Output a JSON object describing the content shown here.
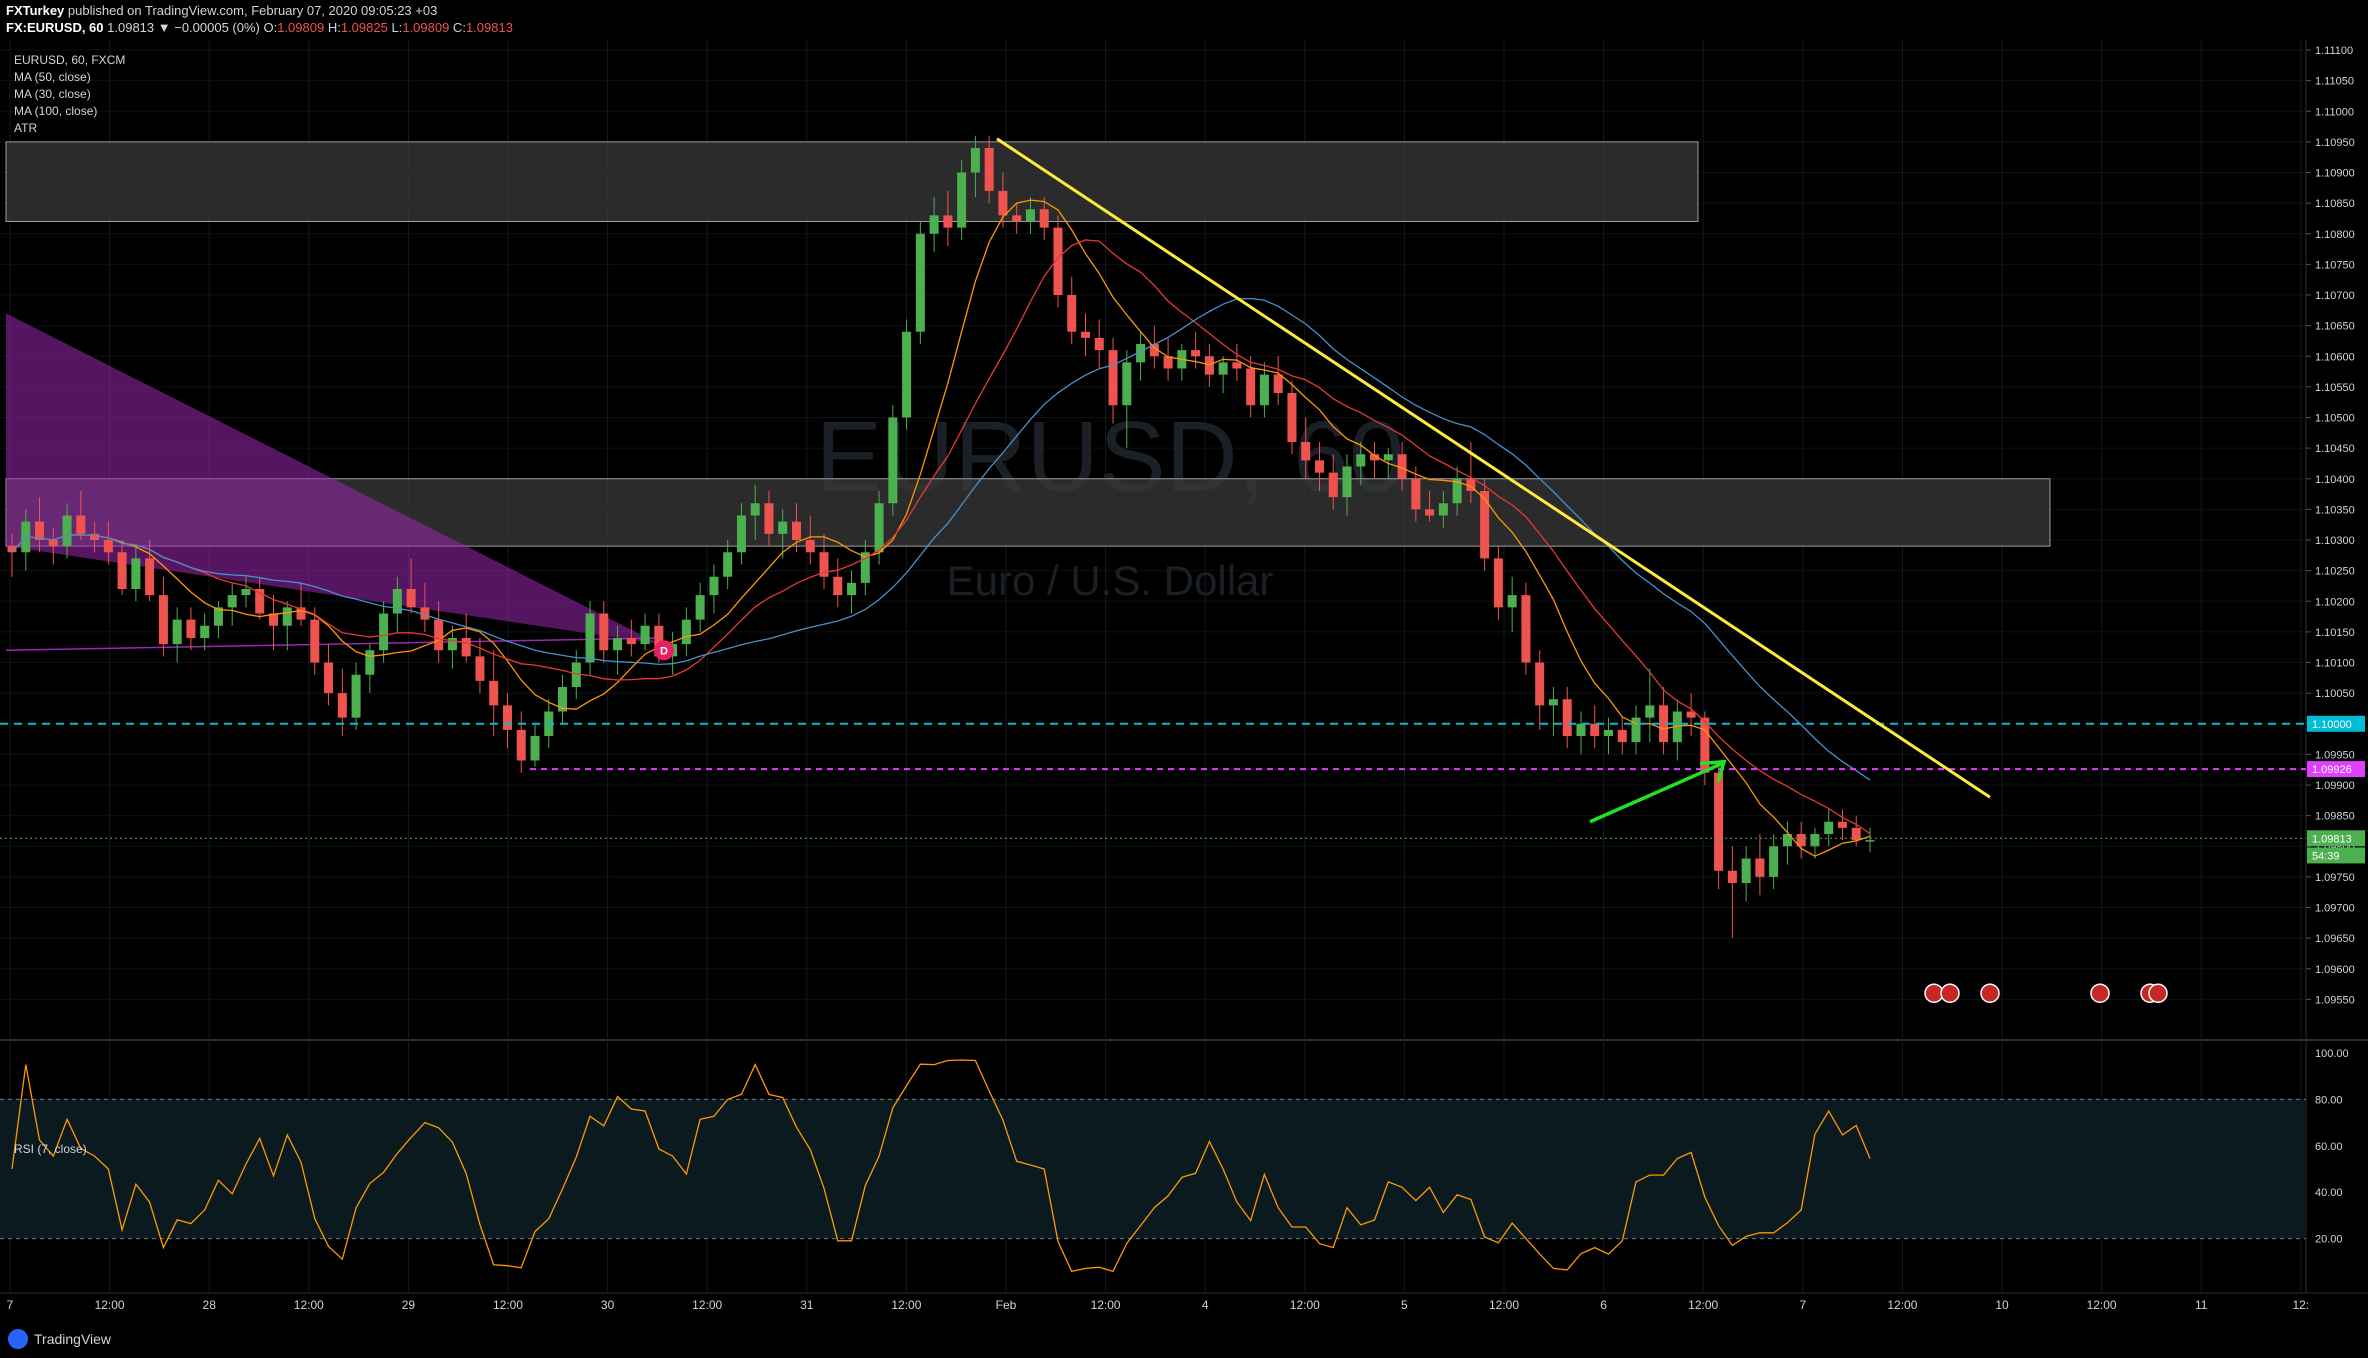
{
  "header": {
    "publisher": "FXTurkey",
    "published_on": " published on TradingView.com, February 07, 2020 09:05:23 +03",
    "symbol_line": "FX:EURUSD, 60",
    "change": " 1.09813 ▼ −0.00005 (0%) ",
    "o_label": "O:",
    "o_val": "1.09809",
    "h_label": " H:",
    "h_val": "1.09825",
    "l_label": " L:",
    "l_val": "1.09809",
    "c_label": " C:",
    "c_val": "1.09813"
  },
  "legend": {
    "symbol": "EURUSD, 60, FXCM",
    "ma50": "MA (50, close)",
    "ma30": "MA (30, close)",
    "ma100": "MA (100, close)",
    "atr": "ATR"
  },
  "watermark": {
    "title": "EURUSD, 60",
    "subtitle": "Euro / U.S. Dollar"
  },
  "rsi": {
    "label": "RSI (7, close)",
    "ticks": [
      "100.00",
      "80.00",
      "60.00",
      "40.00",
      "20.00"
    ]
  },
  "footer": {
    "brand": "TradingView"
  },
  "colors": {
    "up": "#26a69a",
    "up_bright": "#4caf50",
    "down": "#ef5350",
    "trendline": "#ffeb3b",
    "level_cyan": "#00bcd4",
    "level_magenta": "#e040fb",
    "ma_orange": "#ff9800",
    "ma_red": "#e53935",
    "ma_blue": "#4a90c8",
    "rsi_line": "#ff9800",
    "zone_fill": "#3a3a3a",
    "wedge_fill": "#9c27b0"
  },
  "chart_data": {
    "type": "candlestick",
    "title": "EURUSD, 60",
    "price_axis": {
      "ylim": [
        1.095,
        1.111
      ],
      "ticks": [
        "1.11100",
        "1.11050",
        "1.11000",
        "1.10950",
        "1.10900",
        "1.10850",
        "1.10800",
        "1.10750",
        "1.10700",
        "1.10650",
        "1.10600",
        "1.10550",
        "1.10500",
        "1.10450",
        "1.10400",
        "1.10350",
        "1.10300",
        "1.10250",
        "1.10200",
        "1.10150",
        "1.10100",
        "1.10050",
        "1.10000",
        "1.09950",
        "1.09900",
        "1.09850",
        "1.09800",
        "1.09750",
        "1.09700",
        "1.09650",
        "1.09600",
        "1.09550"
      ]
    },
    "time_axis": {
      "labels": [
        "7",
        "12:00",
        "28",
        "12:00",
        "29",
        "12:00",
        "30",
        "12:00",
        "31",
        "12:00",
        "Feb",
        "12:00",
        "4",
        "12:00",
        "5",
        "12:00",
        "6",
        "12:00",
        "7",
        "12:00",
        "10",
        "12:00",
        "11",
        "12:"
      ]
    },
    "price_labels": [
      {
        "value": 1.1,
        "text": "1.10000",
        "color": "#00bcd4"
      },
      {
        "value": 1.09926,
        "text": "1.09926",
        "color": "#e040fb"
      },
      {
        "value": 1.09813,
        "text": "1.09813",
        "color": "#4caf50"
      },
      {
        "value": 1.09785,
        "text": "54:39",
        "color": "#4caf50"
      }
    ],
    "levels": [
      {
        "name": "support 1.10000",
        "value": 1.1,
        "style": "dashed"
      },
      {
        "name": "support 1.09926",
        "value": 1.09926,
        "style": "dashed"
      }
    ],
    "zones": [
      {
        "low": 1.1082,
        "high": 1.1095
      },
      {
        "low": 1.1029,
        "high": 1.104
      }
    ],
    "candles_ohlc": [
      [
        1.1029,
        1.1031,
        1.1024,
        1.1028
      ],
      [
        1.1028,
        1.1035,
        1.1025,
        1.1033
      ],
      [
        1.1033,
        1.1037,
        1.1028,
        1.103
      ],
      [
        1.103,
        1.1032,
        1.1026,
        1.1029
      ],
      [
        1.1029,
        1.1036,
        1.1027,
        1.1034
      ],
      [
        1.1034,
        1.1038,
        1.103,
        1.1031
      ],
      [
        1.1031,
        1.1033,
        1.1028,
        1.103
      ],
      [
        1.103,
        1.1033,
        1.1026,
        1.1028
      ],
      [
        1.1028,
        1.103,
        1.1021,
        1.1022
      ],
      [
        1.1022,
        1.1029,
        1.102,
        1.1027
      ],
      [
        1.1027,
        1.103,
        1.102,
        1.1021
      ],
      [
        1.1021,
        1.1024,
        1.1011,
        1.1013
      ],
      [
        1.1013,
        1.1019,
        1.101,
        1.1017
      ],
      [
        1.1017,
        1.1019,
        1.1012,
        1.1014
      ],
      [
        1.1014,
        1.1018,
        1.1012,
        1.1016
      ],
      [
        1.1016,
        1.102,
        1.1014,
        1.1019
      ],
      [
        1.1019,
        1.1023,
        1.1016,
        1.1021
      ],
      [
        1.1021,
        1.1024,
        1.1019,
        1.1022
      ],
      [
        1.1022,
        1.1024,
        1.1017,
        1.1018
      ],
      [
        1.1018,
        1.1021,
        1.1012,
        1.1016
      ],
      [
        1.1016,
        1.102,
        1.1012,
        1.1019
      ],
      [
        1.1019,
        1.1023,
        1.1016,
        1.1017
      ],
      [
        1.1017,
        1.1019,
        1.1008,
        1.101
      ],
      [
        1.101,
        1.1013,
        1.1003,
        1.1005
      ],
      [
        1.1005,
        1.1009,
        1.0998,
        1.1001
      ],
      [
        1.1001,
        1.101,
        1.0999,
        1.1008
      ],
      [
        1.1008,
        1.1013,
        1.1005,
        1.1012
      ],
      [
        1.1012,
        1.102,
        1.101,
        1.1018
      ],
      [
        1.1018,
        1.1024,
        1.1015,
        1.1022
      ],
      [
        1.1022,
        1.1027,
        1.1018,
        1.1019
      ],
      [
        1.1019,
        1.1023,
        1.1015,
        1.1017
      ],
      [
        1.1017,
        1.102,
        1.101,
        1.1012
      ],
      [
        1.1012,
        1.1016,
        1.1009,
        1.1014
      ],
      [
        1.1014,
        1.1018,
        1.101,
        1.1011
      ],
      [
        1.1011,
        1.1014,
        1.1005,
        1.1007
      ],
      [
        1.1007,
        1.1012,
        1.0998,
        1.1003
      ],
      [
        1.1003,
        1.1005,
        1.0996,
        1.0999
      ],
      [
        1.0999,
        1.1002,
        1.0992,
        1.0994
      ],
      [
        1.0994,
        1.1,
        1.0993,
        1.0998
      ],
      [
        1.0998,
        1.1004,
        1.0996,
        1.1002
      ],
      [
        1.1002,
        1.1008,
        1.1,
        1.1006
      ],
      [
        1.1006,
        1.1012,
        1.1004,
        1.101
      ],
      [
        1.101,
        1.102,
        1.1008,
        1.1018
      ],
      [
        1.1018,
        1.102,
        1.101,
        1.1012
      ],
      [
        1.1012,
        1.1016,
        1.1008,
        1.1014
      ],
      [
        1.1014,
        1.1017,
        1.1011,
        1.1013
      ],
      [
        1.1013,
        1.1018,
        1.1012,
        1.1016
      ],
      [
        1.1016,
        1.1018,
        1.101,
        1.1011
      ],
      [
        1.1011,
        1.1015,
        1.1008,
        1.1013
      ],
      [
        1.1013,
        1.1019,
        1.1011,
        1.1017
      ],
      [
        1.1017,
        1.1023,
        1.1015,
        1.1021
      ],
      [
        1.1021,
        1.1026,
        1.1018,
        1.1024
      ],
      [
        1.1024,
        1.103,
        1.1022,
        1.1028
      ],
      [
        1.1028,
        1.1036,
        1.1026,
        1.1034
      ],
      [
        1.1034,
        1.1039,
        1.103,
        1.1036
      ],
      [
        1.1036,
        1.1038,
        1.1029,
        1.1031
      ],
      [
        1.1031,
        1.1035,
        1.1027,
        1.1033
      ],
      [
        1.1033,
        1.1036,
        1.1028,
        1.103
      ],
      [
        1.103,
        1.1034,
        1.1026,
        1.1028
      ],
      [
        1.1028,
        1.1031,
        1.1022,
        1.1024
      ],
      [
        1.1024,
        1.1027,
        1.1019,
        1.1021
      ],
      [
        1.1021,
        1.1025,
        1.1018,
        1.1023
      ],
      [
        1.1023,
        1.103,
        1.1021,
        1.1028
      ],
      [
        1.1028,
        1.1038,
        1.1026,
        1.1036
      ],
      [
        1.1036,
        1.1052,
        1.1034,
        1.105
      ],
      [
        1.105,
        1.1066,
        1.1048,
        1.1064
      ],
      [
        1.1064,
        1.1082,
        1.1062,
        1.108
      ],
      [
        1.108,
        1.1086,
        1.1077,
        1.1083
      ],
      [
        1.1083,
        1.1087,
        1.1078,
        1.1081
      ],
      [
        1.1081,
        1.1092,
        1.1079,
        1.109
      ],
      [
        1.109,
        1.1096,
        1.1086,
        1.1094
      ],
      [
        1.1094,
        1.1096,
        1.1085,
        1.1087
      ],
      [
        1.1087,
        1.109,
        1.1081,
        1.1083
      ],
      [
        1.1083,
        1.1085,
        1.108,
        1.1082
      ],
      [
        1.1082,
        1.1086,
        1.108,
        1.1084
      ],
      [
        1.1084,
        1.1086,
        1.1079,
        1.1081
      ],
      [
        1.1081,
        1.1083,
        1.1068,
        1.107
      ],
      [
        1.107,
        1.1073,
        1.1062,
        1.1064
      ],
      [
        1.1064,
        1.1067,
        1.106,
        1.1063
      ],
      [
        1.1063,
        1.1066,
        1.1058,
        1.1061
      ],
      [
        1.1061,
        1.1063,
        1.1049,
        1.1052
      ],
      [
        1.1052,
        1.1061,
        1.1045,
        1.1059
      ],
      [
        1.1059,
        1.1064,
        1.1056,
        1.1062
      ],
      [
        1.1062,
        1.1065,
        1.1058,
        1.106
      ],
      [
        1.106,
        1.1063,
        1.1056,
        1.1058
      ],
      [
        1.1058,
        1.1062,
        1.1056,
        1.1061
      ],
      [
        1.1061,
        1.1064,
        1.1058,
        1.106
      ],
      [
        1.106,
        1.1062,
        1.1055,
        1.1057
      ],
      [
        1.1057,
        1.106,
        1.1054,
        1.1059
      ],
      [
        1.1059,
        1.1062,
        1.1056,
        1.1058
      ],
      [
        1.1058,
        1.106,
        1.105,
        1.1052
      ],
      [
        1.1052,
        1.1059,
        1.105,
        1.1057
      ],
      [
        1.1057,
        1.106,
        1.1052,
        1.1054
      ],
      [
        1.1054,
        1.1056,
        1.1044,
        1.1046
      ],
      [
        1.1046,
        1.105,
        1.104,
        1.1043
      ],
      [
        1.1043,
        1.1046,
        1.1038,
        1.1041
      ],
      [
        1.1041,
        1.1044,
        1.1035,
        1.1037
      ],
      [
        1.1037,
        1.1044,
        1.1034,
        1.1042
      ],
      [
        1.1042,
        1.1046,
        1.1039,
        1.1044
      ],
      [
        1.1044,
        1.1046,
        1.104,
        1.1043
      ],
      [
        1.1043,
        1.1045,
        1.104,
        1.1044
      ],
      [
        1.1044,
        1.1046,
        1.1038,
        1.104
      ],
      [
        1.104,
        1.1042,
        1.1033,
        1.1035
      ],
      [
        1.1035,
        1.1038,
        1.1033,
        1.1034
      ],
      [
        1.1034,
        1.1038,
        1.1032,
        1.1036
      ],
      [
        1.1036,
        1.1042,
        1.1034,
        1.104
      ],
      [
        1.104,
        1.1046,
        1.1036,
        1.1038
      ],
      [
        1.1038,
        1.104,
        1.1025,
        1.1027
      ],
      [
        1.1027,
        1.1029,
        1.1017,
        1.1019
      ],
      [
        1.1019,
        1.1024,
        1.1015,
        1.1021
      ],
      [
        1.1021,
        1.1023,
        1.1008,
        1.101
      ],
      [
        1.101,
        1.1012,
        1.0999,
        1.1003
      ],
      [
        1.1003,
        1.1006,
        1.0998,
        1.1004
      ],
      [
        1.1004,
        1.1006,
        1.0996,
        1.0998
      ],
      [
        1.0998,
        1.1002,
        1.0995,
        1.1
      ],
      [
        1.1,
        1.1003,
        1.0996,
        1.0998
      ],
      [
        1.0998,
        1.1001,
        1.0995,
        1.0999
      ],
      [
        1.0999,
        1.1001,
        1.0995,
        1.0997
      ],
      [
        1.0997,
        1.1003,
        1.0995,
        1.1001
      ],
      [
        1.1001,
        1.1009,
        1.0997,
        1.1003
      ],
      [
        1.1003,
        1.1006,
        1.0995,
        1.0997
      ],
      [
        1.0997,
        1.1004,
        1.0994,
        1.1002
      ],
      [
        1.1002,
        1.1005,
        1.0998,
        1.1001
      ],
      [
        1.1001,
        1.1002,
        1.099,
        1.0992
      ],
      [
        1.0992,
        1.0993,
        1.0973,
        1.0976
      ],
      [
        1.0976,
        1.098,
        1.0965,
        1.0974
      ],
      [
        1.0974,
        1.098,
        1.0971,
        1.0978
      ],
      [
        1.0978,
        1.0982,
        1.0972,
        1.0975
      ],
      [
        1.0975,
        1.0982,
        1.0973,
        1.098
      ],
      [
        1.098,
        1.0984,
        1.0977,
        1.0982
      ],
      [
        1.0982,
        1.0984,
        1.0978,
        1.098
      ],
      [
        1.098,
        1.0983,
        1.0978,
        1.0982
      ],
      [
        1.0982,
        1.0986,
        1.098,
        1.0984
      ],
      [
        1.0984,
        1.0986,
        1.0981,
        1.0983
      ],
      [
        1.0983,
        1.0985,
        1.098,
        1.0981
      ],
      [
        1.0981,
        1.0983,
        1.0979,
        1.0981
      ]
    ]
  }
}
